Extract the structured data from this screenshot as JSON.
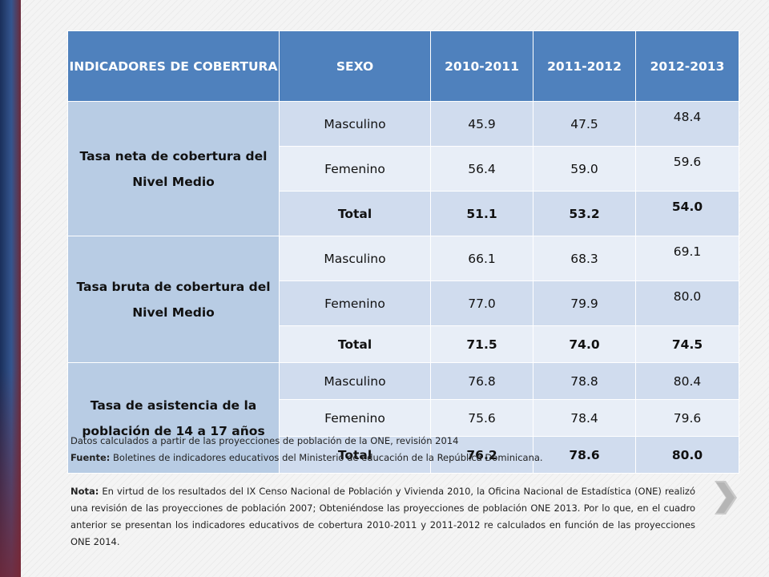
{
  "table": {
    "headers": {
      "indicador": "INDICADORES DE COBERTURA",
      "sexo": "SEXO",
      "y1": "2010-2011",
      "y2": "2011-2012",
      "y3": "2012-2013"
    },
    "groups": [
      {
        "label": "Tasa neta de cobertura del Nivel Medio",
        "rows": [
          {
            "sexo": "Masculino",
            "v1": "45.9",
            "v2": "47.5",
            "v3": "48.4"
          },
          {
            "sexo": "Femenino",
            "v1": "56.4",
            "v2": "59.0",
            "v3": "59.6"
          },
          {
            "sexo": "Total",
            "v1": "51.1",
            "v2": "53.2",
            "v3": "54.0"
          }
        ]
      },
      {
        "label": "Tasa bruta de cobertura del Nivel Medio",
        "rows": [
          {
            "sexo": "Masculino",
            "v1": "66.1",
            "v2": "68.3",
            "v3": "69.1"
          },
          {
            "sexo": "Femenino",
            "v1": "77.0",
            "v2": "79.9",
            "v3": "80.0"
          },
          {
            "sexo": "Total",
            "v1": "71.5",
            "v2": "74.0",
            "v3": "74.5"
          }
        ]
      },
      {
        "label": "Tasa de asistencia de la población de 14 a 17 años",
        "rows": [
          {
            "sexo": "Masculino",
            "v1": "76.8",
            "v2": "78.8",
            "v3": "80.4"
          },
          {
            "sexo": "Femenino",
            "v1": "75.6",
            "v2": "78.4",
            "v3": "79.6"
          },
          {
            "sexo": "Total",
            "v1": "76.2",
            "v2": "78.6",
            "v3": "80.0"
          }
        ]
      }
    ]
  },
  "notes": {
    "datos": "Datos calculados a partir de las proyecciones de población de la ONE, revisión 2014",
    "fuente_label": "Fuente:",
    "fuente_text": " Boletines de indicadores educativos del Ministerio de educación de la República Dominicana.",
    "nota_label": "Nota:",
    "nota_text": " En virtud de los resultados del IX Censo Nacional de Población y Vivienda 2010, la Oficina Nacional de Estadística (ONE) realizó una revisión de las proyecciones de población 2007; Obteniéndose las proyecciones de población ONE 2013. Por lo que, en el cuadro anterior se presentan los indicadores educativos de cobertura 2010-2011 y 2011-2012 re calculados en función de las proyecciones ONE 2014."
  },
  "colors": {
    "header_bg": "#4f81bd",
    "label_bg": "#b8cce4",
    "row_odd": "#d0dcee",
    "row_even": "#e8eef7"
  },
  "icons": {
    "next": "chevron-right-icon"
  }
}
